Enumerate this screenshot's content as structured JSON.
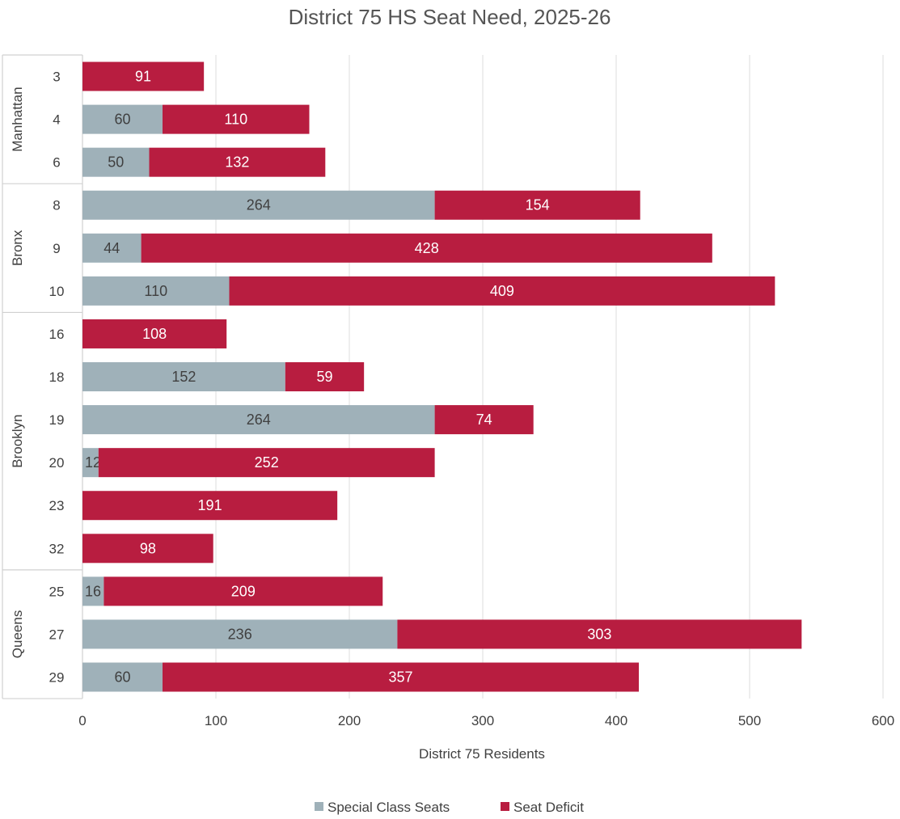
{
  "chart_data": {
    "type": "bar",
    "orientation": "horizontal",
    "stacked": true,
    "title": "District 75 HS Seat Need, 2025-26",
    "xlabel": "District 75 Residents",
    "xlim": [
      0,
      600
    ],
    "xticks": [
      "0",
      "100",
      "200",
      "300",
      "400",
      "500",
      "600"
    ],
    "grid": true,
    "legend_position": "bottom",
    "groups": [
      {
        "name": "Manhattan",
        "categories": [
          "3",
          "4",
          "6"
        ]
      },
      {
        "name": "Bronx",
        "categories": [
          "8",
          "9",
          "10"
        ]
      },
      {
        "name": "Brooklyn",
        "categories": [
          "16",
          "18",
          "19",
          "20",
          "23",
          "32"
        ]
      },
      {
        "name": "Queens",
        "categories": [
          "25",
          "27",
          "29"
        ]
      }
    ],
    "categories": [
      "3",
      "4",
      "6",
      "8",
      "9",
      "10",
      "16",
      "18",
      "19",
      "20",
      "23",
      "32",
      "25",
      "27",
      "29"
    ],
    "series": [
      {
        "name": "Special Class Seats",
        "color": "#9fb1b9",
        "label_color": "#404040",
        "values": [
          0,
          60,
          50,
          264,
          44,
          110,
          0,
          152,
          264,
          12,
          0,
          0,
          16,
          236,
          60
        ]
      },
      {
        "name": "Seat Deficit",
        "color": "#b81d40",
        "label_color": "#ffffff",
        "values": [
          91,
          110,
          132,
          154,
          428,
          409,
          108,
          59,
          74,
          252,
          191,
          98,
          209,
          303,
          357
        ]
      }
    ]
  }
}
